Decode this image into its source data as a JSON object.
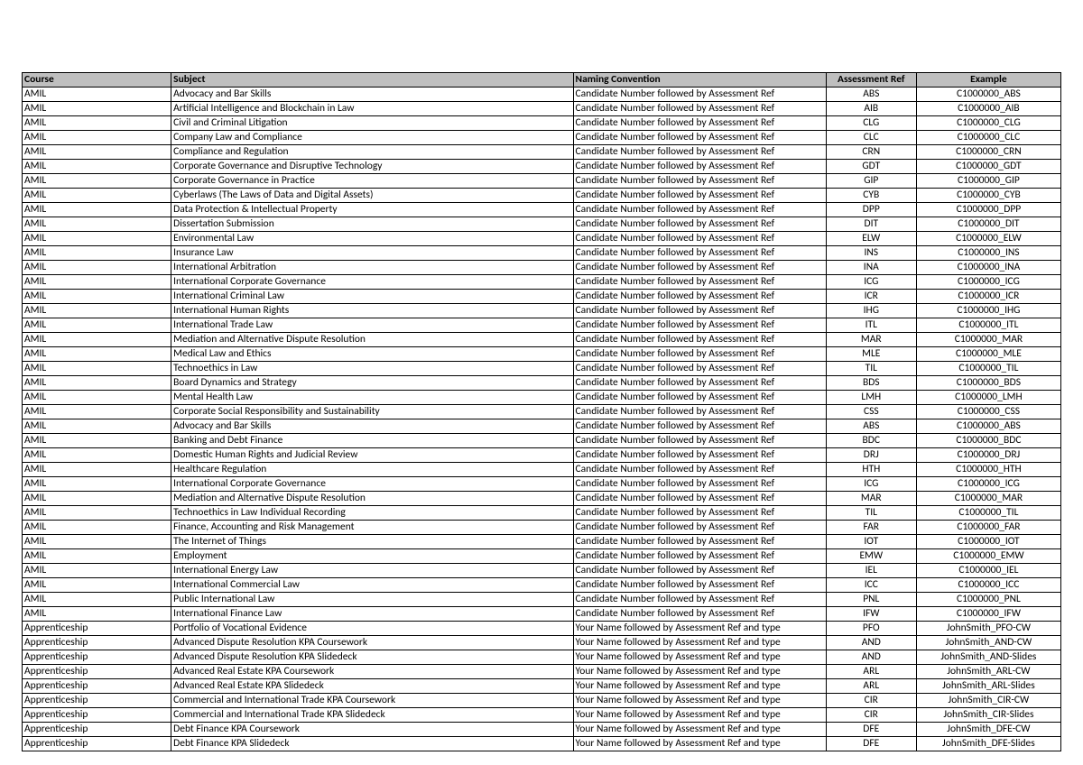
{
  "columns": [
    "Course",
    "Subject",
    "Naming Convention",
    "Assessment Ref",
    "Example"
  ],
  "naming_amil": "Candidate Number followed by Assessment Ref",
  "naming_appr": "Your Name followed by Assessment Ref and type",
  "rows": [
    {
      "course": "AMIL",
      "subject": "Advocacy and Bar Skills",
      "ref": "ABS",
      "example": "C1000000_ABS",
      "n": "amil"
    },
    {
      "course": "AMIL",
      "subject": "Artificial Intelligence and Blockchain in Law",
      "ref": "AIB",
      "example": "C1000000_AIB",
      "n": "amil"
    },
    {
      "course": "AMIL",
      "subject": "Civil and Criminal Litigation",
      "ref": "CLG",
      "example": "C1000000_CLG",
      "n": "amil"
    },
    {
      "course": "AMIL",
      "subject": "Company Law and Compliance",
      "ref": "CLC",
      "example": "C1000000_CLC",
      "n": "amil"
    },
    {
      "course": "AMIL",
      "subject": "Compliance and Regulation",
      "ref": "CRN",
      "example": "C1000000_CRN",
      "n": "amil"
    },
    {
      "course": "AMIL",
      "subject": "Corporate Governance and Disruptive Technology",
      "ref": "GDT",
      "example": "C1000000_GDT",
      "n": "amil"
    },
    {
      "course": "AMIL",
      "subject": "Corporate Governance in Practice",
      "ref": "GIP",
      "example": "C1000000_GIP",
      "n": "amil"
    },
    {
      "course": "AMIL",
      "subject": "Cyberlaws (The Laws of Data and Digital Assets)",
      "ref": "CYB",
      "example": "C1000000_CYB",
      "n": "amil"
    },
    {
      "course": "AMIL",
      "subject": "Data Protection & Intellectual Property",
      "ref": "DPP",
      "example": "C1000000_DPP",
      "n": "amil"
    },
    {
      "course": "AMIL",
      "subject": "Dissertation Submission",
      "ref": "DIT",
      "example": "C1000000_DIT",
      "n": "amil"
    },
    {
      "course": "AMIL",
      "subject": "Environmental Law",
      "ref": "ELW",
      "example": "C1000000_ELW",
      "n": "amil"
    },
    {
      "course": "AMIL",
      "subject": "Insurance Law",
      "ref": "INS",
      "example": "C1000000_INS",
      "n": "amil"
    },
    {
      "course": "AMIL",
      "subject": "International Arbitration",
      "ref": "INA",
      "example": "C1000000_INA",
      "n": "amil"
    },
    {
      "course": "AMIL",
      "subject": "International Corporate Governance",
      "ref": "ICG",
      "example": "C1000000_ICG",
      "n": "amil"
    },
    {
      "course": "AMIL",
      "subject": "International Criminal Law",
      "ref": "ICR",
      "example": "C1000000_ICR",
      "n": "amil"
    },
    {
      "course": "AMIL",
      "subject": "International Human Rights",
      "ref": "IHG",
      "example": "C1000000_IHG",
      "n": "amil"
    },
    {
      "course": "AMIL",
      "subject": "International Trade Law",
      "ref": "ITL",
      "example": "C1000000_ITL",
      "n": "amil"
    },
    {
      "course": "AMIL",
      "subject": "Mediation and Alternative Dispute Resolution",
      "ref": "MAR",
      "example": "C1000000_MAR",
      "n": "amil"
    },
    {
      "course": "AMIL",
      "subject": "Medical Law and Ethics",
      "ref": "MLE",
      "example": "C1000000_MLE",
      "n": "amil"
    },
    {
      "course": "AMIL",
      "subject": "Technoethics in Law",
      "ref": "TIL",
      "example": "C1000000_TIL",
      "n": "amil"
    },
    {
      "course": "AMIL",
      "subject": "Board Dynamics and Strategy",
      "ref": "BDS",
      "example": "C1000000_BDS",
      "n": "amil"
    },
    {
      "course": "AMIL",
      "subject": "Mental Health Law",
      "ref": "LMH",
      "example": "C1000000_LMH",
      "n": "amil"
    },
    {
      "course": "AMIL",
      "subject": "Corporate Social Responsibility and Sustainability",
      "ref": "CSS",
      "example": "C1000000_CSS",
      "n": "amil"
    },
    {
      "course": "AMIL",
      "subject": "Advocacy and Bar Skills",
      "ref": "ABS",
      "example": "C1000000_ABS",
      "n": "amil"
    },
    {
      "course": "AMIL",
      "subject": "Banking and Debt Finance",
      "ref": "BDC",
      "example": "C1000000_BDC",
      "n": "amil"
    },
    {
      "course": "AMIL",
      "subject": "Domestic Human Rights and Judicial Review",
      "ref": "DRJ",
      "example": "C1000000_DRJ",
      "n": "amil"
    },
    {
      "course": "AMIL",
      "subject": "Healthcare Regulation",
      "ref": "HTH",
      "example": "C1000000_HTH",
      "n": "amil"
    },
    {
      "course": "AMIL",
      "subject": "International Corporate Governance",
      "ref": "ICG",
      "example": "C1000000_ICG",
      "n": "amil"
    },
    {
      "course": "AMIL",
      "subject": "Mediation and Alternative Dispute Resolution",
      "ref": "MAR",
      "example": "C1000000_MAR",
      "n": "amil"
    },
    {
      "course": "AMIL",
      "subject": "Technoethics in Law Individual Recording",
      "ref": "TIL",
      "example": "C1000000_TIL",
      "n": "amil"
    },
    {
      "course": "AMIL",
      "subject": "Finance, Accounting and Risk Management",
      "ref": "FAR",
      "example": "C1000000_FAR",
      "n": "amil"
    },
    {
      "course": "AMIL",
      "subject": "The Internet of Things",
      "ref": "IOT",
      "example": "C1000000_IOT",
      "n": "amil"
    },
    {
      "course": "AMIL",
      "subject": "Employment",
      "ref": "EMW",
      "example": "C1000000_EMW",
      "n": "amil"
    },
    {
      "course": "AMIL",
      "subject": "International Energy Law",
      "ref": "IEL",
      "example": "C1000000_IEL",
      "n": "amil"
    },
    {
      "course": "AMIL",
      "subject": "International Commercial Law",
      "ref": "ICC",
      "example": "C1000000_ICC",
      "n": "amil"
    },
    {
      "course": "AMIL",
      "subject": "Public International Law",
      "ref": "PNL",
      "example": "C1000000_PNL",
      "n": "amil"
    },
    {
      "course": "AMIL",
      "subject": "International Finance Law",
      "ref": "IFW",
      "example": "C1000000_IFW",
      "n": "amil"
    },
    {
      "course": "Apprenticeship",
      "subject": "Portfolio of Vocational Evidence",
      "ref": "PFO",
      "example": "JohnSmith_PFO-CW",
      "n": "appr"
    },
    {
      "course": "Apprenticeship",
      "subject": "Advanced Dispute Resolution KPA Coursework",
      "ref": "AND",
      "example": "JohnSmith_AND-CW",
      "n": "appr"
    },
    {
      "course": "Apprenticeship",
      "subject": "Advanced Dispute Resolution KPA Slidedeck",
      "ref": "AND",
      "example": "JohnSmith_AND-Slides",
      "n": "appr"
    },
    {
      "course": "Apprenticeship",
      "subject": "Advanced Real Estate KPA Coursework",
      "ref": "ARL",
      "example": "JohnSmith_ARL-CW",
      "n": "appr"
    },
    {
      "course": "Apprenticeship",
      "subject": "Advanced Real Estate KPA Slidedeck",
      "ref": "ARL",
      "example": "JohnSmith_ARL-Slides",
      "n": "appr"
    },
    {
      "course": "Apprenticeship",
      "subject": "Commercial and International Trade KPA Coursework",
      "ref": "CIR",
      "example": "JohnSmith_CIR-CW",
      "n": "appr"
    },
    {
      "course": "Apprenticeship",
      "subject": "Commercial and International Trade KPA Slidedeck",
      "ref": "CIR",
      "example": "JohnSmith_CIR-Slides",
      "n": "appr"
    },
    {
      "course": "Apprenticeship",
      "subject": "Debt Finance KPA Coursework",
      "ref": "DFE",
      "example": "JohnSmith_DFE-CW",
      "n": "appr"
    },
    {
      "course": "Apprenticeship",
      "subject": "Debt Finance KPA Slidedeck",
      "ref": "DFE",
      "example": "JohnSmith_DFE-Slides",
      "n": "appr"
    }
  ]
}
